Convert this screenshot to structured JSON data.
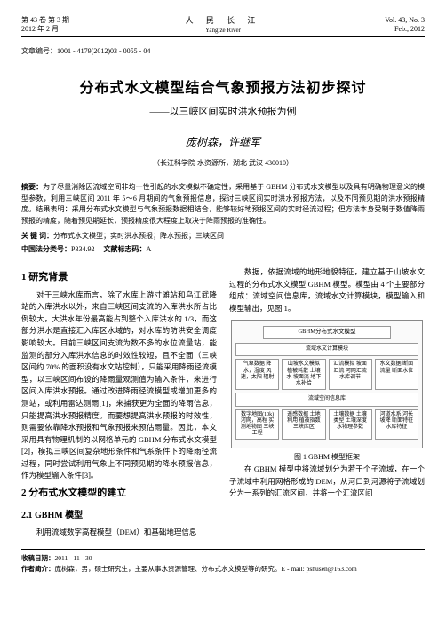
{
  "header": {
    "left_line1": "第 43 卷 第 3 期",
    "left_line2": "2012 年 2 月",
    "center_cn": "人 民 长 江",
    "center_en": "Yangtze River",
    "right_line1": "Vol. 43, No. 3",
    "right_line2": "Feb., 2012"
  },
  "article_id_label": "文章编号：",
  "article_id": "1001 - 4179(2012)03 - 0055 - 04",
  "title": "分布式水文模型结合气象预报方法初步探讨",
  "subtitle": "——以三峡区间实时洪水预报为例",
  "authors": "庞树森，许继军",
  "affiliation": "（长江科学院 水资源所，湖北 武汉 430010）",
  "abstract_label": "摘要：",
  "abstract": "为了尽量消除因流域空间非均一性引起的水文模拟不确定性，采用基于 GBHM 分布式水文模型以及具有明确物理意义的模型参数，利用三峡区间 2011 年 5～6 月期间的气象预报信息，探讨三峡区间实时洪水预报方法，以及不同预见期的洪水预报精度。结果表明：采用分布式水文模型与气象预报数据相结合，能够较好地预报区间的实时径流过程；但方法本身受制于数值降雨预报的精度，随着预见期延长，预报精度很大程度上取决于降雨预报的准确性。",
  "keywords_label": "关 键 词：",
  "keywords": "分布式水文模型；实时洪水预报；降水预报；三峡区间",
  "class_label_1": "中国法分类号：",
  "class_value_1": "P334.92",
  "class_label_2": "文献标志码：",
  "class_value_2": "A",
  "col_left": {
    "h1": "1 研究背景",
    "p1": "对于三峡水库而言，除了水库上游寸滩站和乌江武隆站的入库洪水以外，来自三峡区间支流的入库洪水所占比例较大，大洪水年份最高能占到整个入库洪水的 1/3，而这部分洪水是直接汇入库区水域的，对水库的防洪安全调度影响较大。目前三峡区间支流为数不多的水位流量站，能监测的部分入库洪水信息的时效性较短，且不全面（三峡区间约 70% 的面积没有水文站控制），只能采用降雨径流模型，以三峡区间布设的降雨量观测值为输入条件，来进行区间入库洪水预报。通过改进降雨径流模型或增加更多的测站，或利用雷达测雨[1]，来捕获更为全面的降雨信息，只能提高洪水预报精度。而要想提高洪水预报的时效性，则需要依靠降水预报和气象预报来预估雨量。因此，本文采用具有物理机制的以网格单元的 GBHM 分布式水文模型[2]，模拟三峡区间复杂地形条件和气系条件下的降雨径流过程，同时尝试利用气象上不同预见期的降水预报信息，作为模型输入条件[3]。",
    "h2_1": "2 分布式水文模型的建立",
    "h2_2": "2.1 GBHM 模型",
    "p2": "利用流域数字高程模型（DEM）和基础地理信息"
  },
  "col_right": {
    "p1": "数据，依据流域的地形地貌特征，建立基于山坡水文过程的分布式水文模型 GBHM 模型。模型由 4 个主要部分组成：流域空间信息库，流域水文计算模块，模型输入和模型输出，见图 1。",
    "figure": {
      "outer": "GBHM分布式水文模型",
      "section": "流域水文计算模块",
      "row1": [
        "气象数据\n降水，湿度\n风速，太阳\n辐射",
        "山坡水文模拟\n植被耗散\n土壤水\n坡面流\n地下水补给",
        "汇流模拟\n坡面汇流\n河网汇流\n水库调节",
        "水文数据\n断面流量\n断面水位"
      ],
      "band": "流域空间信息库",
      "row2": [
        "数字地图(10k)\n河网，高程\n实测地物图\n三峡工程",
        "遥感数据\n土地利用\n植被指数\n三峡库区",
        "土壤数据\n土壤类型\n土壤深度\n水物理参数",
        "河道水系\n河长坡降\n断面特征\n水库特征"
      ],
      "caption": "图 1 GBHM 模型框架"
    },
    "p2": "在 GBHM 模型中将流域划分为若干个子流域，在一个子流域中利用网格形成的 DEM，从河口到河源将子流域划分为一系列的汇流区间，并将一个汇流区间"
  },
  "footer": {
    "date_label": "收稿日期：",
    "date": "2011 - 11 - 30",
    "author_label": "作者简介：",
    "author_info": "庞树森，男，硕士研究生，主要从事水资源管理、分布式水文模型等的研究。E - mail: pshusen@163.com"
  }
}
